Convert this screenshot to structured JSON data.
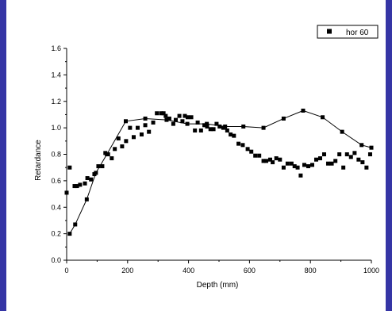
{
  "chart_data": {
    "type": "scatter",
    "xlabel": "Depth (mm)",
    "ylabel": "Retardance",
    "xlim": [
      0,
      1000
    ],
    "ylim": [
      0.0,
      1.6
    ],
    "x_ticks": [
      0,
      200,
      400,
      600,
      800,
      1000
    ],
    "y_ticks": [
      0.0,
      0.2,
      0.4,
      0.6,
      0.8,
      1.0,
      1.2,
      1.4,
      1.6
    ],
    "x_tick_labels": [
      "0",
      "200",
      "400",
      "600",
      "800",
      "1000"
    ],
    "y_tick_labels": [
      "0.0",
      "0.2",
      "0.4",
      "0.6",
      "0.8",
      "1.0",
      "1.2",
      "1.4",
      "1.6"
    ],
    "grid": false,
    "legend_position": "top-right",
    "series": [
      {
        "name": "hor 60",
        "marker": "square",
        "line": false,
        "x": [
          0,
          10,
          26,
          34,
          44,
          60,
          68,
          80,
          91,
          104,
          117,
          127,
          136,
          148,
          158,
          170,
          182,
          195,
          208,
          220,
          233,
          246,
          258,
          270,
          284,
          296,
          310,
          318,
          325,
          337,
          350,
          358,
          370,
          380,
          388,
          397,
          409,
          421,
          430,
          441,
          452,
          461,
          472,
          482,
          492,
          502,
          514,
          527,
          538,
          549,
          564,
          578,
          594,
          606,
          619,
          632,
          646,
          655,
          668,
          676,
          688,
          700,
          712,
          725,
          738,
          748,
          758,
          768,
          780,
          793,
          806,
          819,
          832,
          845,
          858,
          870,
          882,
          895,
          908,
          920,
          933,
          945,
          958,
          971,
          984,
          996
        ],
        "y": [
          0.51,
          0.7,
          0.56,
          0.56,
          0.57,
          0.58,
          0.62,
          0.61,
          0.65,
          0.71,
          0.71,
          0.81,
          0.8,
          0.77,
          0.84,
          0.92,
          0.86,
          0.9,
          1.0,
          0.93,
          1.0,
          0.95,
          1.02,
          0.97,
          1.04,
          1.11,
          1.11,
          1.11,
          1.09,
          1.07,
          1.03,
          1.06,
          1.09,
          1.05,
          1.09,
          1.08,
          1.08,
          0.98,
          1.04,
          0.98,
          1.02,
          1.01,
          0.99,
          0.99,
          1.03,
          1.01,
          1.0,
          0.98,
          0.95,
          0.94,
          0.88,
          0.87,
          0.84,
          0.82,
          0.79,
          0.79,
          0.75,
          0.75,
          0.76,
          0.74,
          0.77,
          0.76,
          0.7,
          0.73,
          0.73,
          0.71,
          0.7,
          0.64,
          0.72,
          0.71,
          0.72,
          0.76,
          0.77,
          0.8,
          0.73,
          0.73,
          0.75,
          0.8,
          0.7,
          0.8,
          0.78,
          0.81,
          0.76,
          0.74,
          0.7,
          0.8
        ]
      },
      {
        "name": "",
        "marker": "square",
        "line": true,
        "x": [
          10,
          28,
          66,
          96,
          132,
          194,
          258,
          328,
          396,
          460,
          520,
          580,
          646,
          712,
          776,
          840,
          904,
          968,
          1000
        ],
        "y": [
          0.2,
          0.27,
          0.46,
          0.66,
          0.8,
          1.05,
          1.07,
          1.06,
          1.03,
          1.03,
          1.01,
          1.01,
          1.0,
          1.07,
          1.13,
          1.08,
          0.97,
          0.87,
          0.85
        ]
      }
    ]
  }
}
